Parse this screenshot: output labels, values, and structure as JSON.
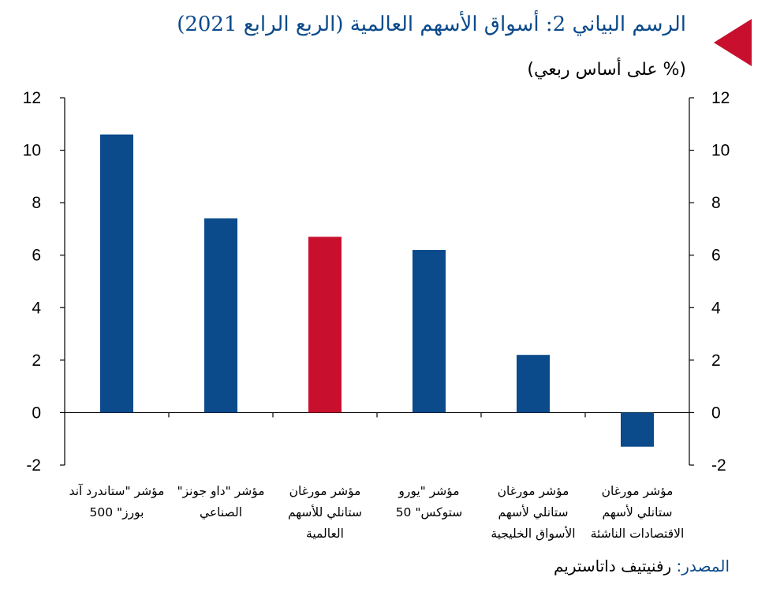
{
  "header": {
    "title": "الرسم البياني 2: أسواق الأسهم العالمية (الربع الرابع 2021)",
    "subtitle": "(% على أساس ربعي)",
    "marker_color": "#c8102e"
  },
  "footer": {
    "source_label": "المصدر:",
    "source_value": "رفنيتيف داتاستريم"
  },
  "chart_data": {
    "type": "bar",
    "categories": [
      [
        "مؤشر \"ستاندرد آند",
        "بورز\" 500"
      ],
      [
        "مؤشر \"داو جونز\"",
        "الصناعي"
      ],
      [
        "مؤشر مورغان",
        "ستانلي للأسهم",
        "العالمية"
      ],
      [
        "مؤشر \"يورو",
        "ستوكس\" 50"
      ],
      [
        "مؤشر مورغان",
        "ستانلي لأسهم",
        "الأسواق الخليجية"
      ],
      [
        "مؤشر مورغان",
        "ستانلي لأسهم",
        "الاقتصادات الناشئة"
      ]
    ],
    "values": [
      10.6,
      7.4,
      6.7,
      6.2,
      2.2,
      -1.3
    ],
    "colors": [
      "#0b4a8b",
      "#0b4a8b",
      "#c8102e",
      "#0b4a8b",
      "#0b4a8b",
      "#0b4a8b"
    ],
    "ylim": [
      -2,
      12
    ],
    "yticks": [
      "-2",
      "0",
      "2",
      "4",
      "6",
      "8",
      "10",
      "12"
    ],
    "ytick_values": [
      -2,
      0,
      2,
      4,
      6,
      8,
      10,
      12
    ],
    "grid": false,
    "legend": "none",
    "secondary_axis": true
  }
}
